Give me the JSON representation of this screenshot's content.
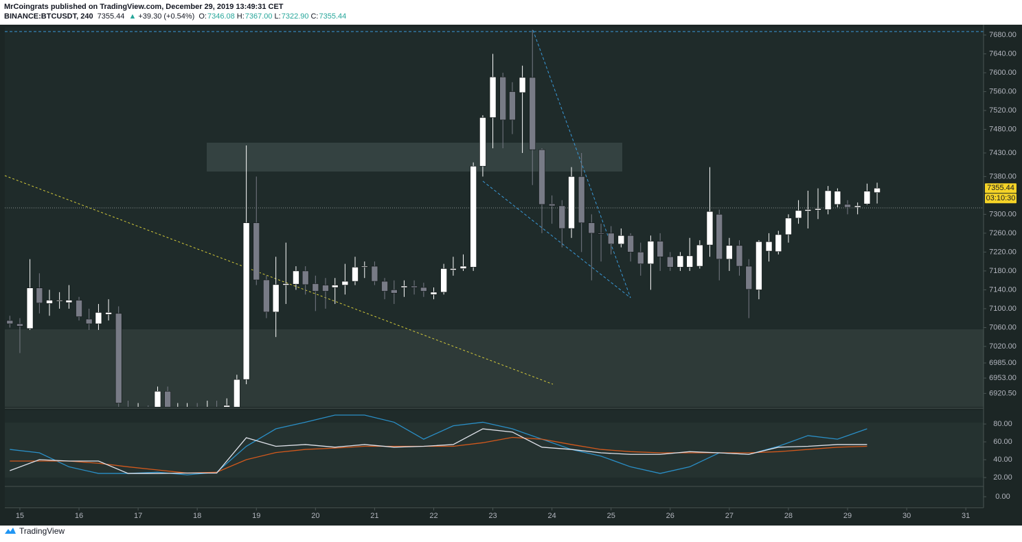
{
  "header": {
    "title": "MrCoingrats published on TradingView.com, December 29, 2019 13:49:31 CET",
    "symbol": "BINANCE:BTCUSDT, 240",
    "last": "7355.44",
    "arrow": "▲",
    "change": "+39.30 (+0.54%)",
    "ohlc": [
      {
        "label": "O:",
        "value": "7346.08"
      },
      {
        "label": "H:",
        "value": "7367.00"
      },
      {
        "label": "L:",
        "value": "7322.90"
      },
      {
        "label": "C:",
        "value": "7355.44"
      }
    ]
  },
  "footer": {
    "brand": "TradingView"
  },
  "chart_data": [
    {
      "type": "candlestick",
      "up_color": "#ffffff",
      "down_color": "#787b86",
      "price_label": "7355.44",
      "countdown": "03:10:30",
      "price_label_value": 7355.44,
      "x": [
        14.83,
        15,
        15.17,
        15.33,
        15.5,
        15.67,
        15.83,
        16,
        16.17,
        16.33,
        16.5,
        16.67,
        16.83,
        17,
        17.17,
        17.33,
        17.5,
        17.67,
        17.83,
        18,
        18.17,
        18.33,
        18.5,
        18.67,
        18.83,
        19,
        19.17,
        19.33,
        19.5,
        19.67,
        19.83,
        20,
        20.17,
        20.33,
        20.5,
        20.67,
        20.83,
        21,
        21.17,
        21.33,
        21.5,
        21.67,
        21.83,
        22,
        22.17,
        22.33,
        22.5,
        22.67,
        22.83,
        23,
        23.17,
        23.33,
        23.5,
        23.67,
        23.83,
        24,
        24.17,
        24.33,
        24.5,
        24.67,
        24.83,
        25,
        25.17,
        25.33,
        25.5,
        25.67,
        25.83,
        26,
        26.17,
        26.33,
        26.5,
        26.67,
        26.83,
        27,
        27.17,
        27.33,
        27.5,
        27.67,
        27.83,
        28,
        28.17,
        28.33,
        28.5,
        28.67,
        28.83,
        29,
        29.17,
        29.33,
        29.5
      ],
      "open": [
        7075,
        7068,
        7058,
        7144,
        7111,
        7116,
        7113,
        7118,
        7078,
        7068,
        7088,
        7090,
        6885,
        6870,
        6880,
        6870,
        6925,
        6870,
        6880,
        6885,
        6880,
        6890,
        6885,
        6880,
        6950,
        7282,
        7161,
        7093,
        7150,
        7152,
        7180,
        7153,
        7150,
        7145,
        7150,
        7158,
        7188,
        7190,
        7158,
        7140,
        7145,
        7148,
        7145,
        7130,
        7135,
        7182,
        7185,
        7188,
        7402,
        7505,
        7591,
        7560,
        7558,
        7590,
        7437,
        7322,
        7318,
        7270,
        7380,
        7282,
        7260,
        7260,
        7237,
        7255,
        7220,
        7195,
        7243,
        7210,
        7188,
        7188,
        7190,
        7235,
        7300,
        7205,
        7234,
        7190,
        7140,
        7222,
        7221,
        7257,
        7292,
        7307,
        7309,
        7310,
        7321,
        7321,
        7315,
        7322,
        7346.08
      ],
      "high": [
        7085,
        7080,
        7205,
        7175,
        7140,
        7135,
        7150,
        7125,
        7100,
        7110,
        7120,
        7105,
        6905,
        6900,
        6895,
        6935,
        6935,
        6900,
        6900,
        6900,
        6905,
        6905,
        6910,
        6960,
        7446,
        7380,
        7170,
        7210,
        7240,
        7190,
        7190,
        7170,
        7165,
        7165,
        7195,
        7210,
        7200,
        7200,
        7165,
        7160,
        7160,
        7160,
        7155,
        7145,
        7195,
        7210,
        7215,
        7410,
        7510,
        7640,
        7600,
        7580,
        7615,
        7691,
        7440,
        7340,
        7330,
        7400,
        7430,
        7300,
        7280,
        7275,
        7270,
        7260,
        7240,
        7255,
        7260,
        7220,
        7220,
        7250,
        7245,
        7400,
        7310,
        7250,
        7245,
        7205,
        7245,
        7260,
        7265,
        7300,
        7330,
        7350,
        7355,
        7360,
        7355,
        7330,
        7325,
        7365,
        7367
      ],
      "low": [
        7060,
        7006,
        7055,
        7090,
        7085,
        7100,
        7100,
        7075,
        7055,
        7055,
        7075,
        6890,
        6860,
        6850,
        6855,
        6860,
        6860,
        6850,
        6860,
        6860,
        6865,
        6865,
        6870,
        6870,
        6940,
        7150,
        7080,
        7040,
        7110,
        7140,
        7130,
        7095,
        7100,
        7110,
        7130,
        7150,
        7165,
        7150,
        7120,
        7110,
        7125,
        7130,
        7125,
        7120,
        7130,
        7170,
        7180,
        7180,
        7380,
        7440,
        7440,
        7470,
        7430,
        7362,
        7260,
        7280,
        7230,
        7250,
        7220,
        7160,
        7200,
        7215,
        7230,
        7200,
        7170,
        7140,
        7180,
        7180,
        7180,
        7180,
        7185,
        7210,
        7160,
        7180,
        7170,
        7080,
        7120,
        7200,
        7215,
        7240,
        7280,
        7270,
        7290,
        7300,
        7315,
        7300,
        7300,
        7320,
        7322.9
      ],
      "close": [
        7068,
        7063,
        7144,
        7112,
        7118,
        7118,
        7118,
        7083,
        7068,
        7092,
        7092,
        6900,
        6870,
        6880,
        6875,
        6925,
        6870,
        6880,
        6885,
        6880,
        6890,
        6885,
        6895,
        6950,
        7282,
        7161,
        7093,
        7151,
        7153,
        7180,
        7151,
        7137,
        7137,
        7150,
        7158,
        7188,
        7190,
        7158,
        7137,
        7133,
        7148,
        7145,
        7137,
        7135,
        7185,
        7185,
        7190,
        7402,
        7505,
        7591,
        7500,
        7500,
        7590,
        7437,
        7321,
        7318,
        7270,
        7380,
        7282,
        7260,
        7258,
        7237,
        7255,
        7220,
        7195,
        7243,
        7210,
        7188,
        7212,
        7212,
        7235,
        7306,
        7205,
        7234,
        7190,
        7141,
        7242,
        7242,
        7257,
        7292,
        7308,
        7310,
        7312,
        7350,
        7349,
        7315,
        7318,
        7349,
        7355.44
      ],
      "xlim": [
        14.745,
        31.3
      ],
      "xticks": [
        15,
        16,
        17,
        18,
        19,
        20,
        21,
        22,
        23,
        24,
        25,
        26,
        27,
        28,
        29,
        30,
        31
      ],
      "ylim": [
        6892,
        7696
      ],
      "yticks": [
        {
          "value": 7680,
          "label": "7680.00"
        },
        {
          "value": 7640,
          "label": "7640.00"
        },
        {
          "value": 7600,
          "label": "7600.00"
        },
        {
          "value": 7560,
          "label": "7560.00"
        },
        {
          "value": 7520,
          "label": "7520.00"
        },
        {
          "value": 7480,
          "label": "7480.00"
        },
        {
          "value": 7430,
          "label": "7430.00"
        },
        {
          "value": 7380,
          "label": "7380.00"
        },
        {
          "value": 7300,
          "label": "7300.00"
        },
        {
          "value": 7260,
          "label": "7260.00"
        },
        {
          "value": 7220,
          "label": "7220.00"
        },
        {
          "value": 7180,
          "label": "7180.00"
        },
        {
          "value": 7140,
          "label": "7140.00"
        },
        {
          "value": 7100,
          "label": "7100.00"
        },
        {
          "value": 7060,
          "label": "7060.00"
        },
        {
          "value": 7020,
          "label": "7020.00"
        },
        {
          "value": 6985,
          "label": "6985.00"
        },
        {
          "value": 6953,
          "label": "6953.00"
        },
        {
          "value": 6920.5,
          "label": "6920.50"
        }
      ]
    },
    {
      "type": "line",
      "x": [
        14.83,
        15.33,
        15.83,
        16.33,
        16.83,
        17.33,
        17.83,
        18.33,
        18.83,
        19.33,
        19.83,
        20.33,
        20.83,
        21.33,
        21.83,
        22.33,
        22.83,
        23.33,
        23.83,
        24.33,
        24.83,
        25.33,
        25.83,
        26.33,
        26.83,
        27.33,
        27.83,
        28.33,
        28.83,
        29.33
      ],
      "series": [
        {
          "color": "#2a8fc7",
          "values": [
            51.5,
            47.7,
            32,
            24.6,
            24.6,
            26,
            23,
            26,
            55,
            74.6,
            82,
            90,
            90,
            82,
            63,
            78,
            82,
            74.6,
            63,
            51.5,
            44,
            32,
            24.6,
            32,
            47.7,
            46,
            55,
            67,
            63,
            74.6
          ]
        },
        {
          "color": "#d4591c",
          "values": [
            38.5,
            38.5,
            38.5,
            36,
            32,
            28.5,
            25,
            26,
            40,
            48,
            51.5,
            53,
            55,
            55,
            55,
            55,
            59,
            65,
            63,
            57,
            51.5,
            49,
            47.7,
            47.7,
            47.7,
            47.7,
            49,
            51.5,
            54,
            55
          ]
        },
        {
          "color": "#e0e3eb",
          "values": [
            27.7,
            40,
            38.5,
            38.5,
            24.6,
            24.6,
            25,
            25,
            64.6,
            55,
            57,
            54,
            57,
            54,
            55,
            57,
            74.6,
            71,
            54,
            51.5,
            47.7,
            46,
            46,
            49,
            47.7,
            46,
            54,
            55,
            57,
            57
          ]
        }
      ],
      "ylim": [
        10.8,
        95.4
      ],
      "yticks": [
        {
          "value": 80,
          "label": "80.00"
        },
        {
          "value": 60,
          "label": "60.00"
        },
        {
          "value": 40,
          "label": "40.00"
        },
        {
          "value": 20,
          "label": "20.00"
        }
      ]
    },
    {
      "type": "line",
      "series": [],
      "ylim": [
        -1,
        1
      ],
      "yticks": [
        {
          "value": 0,
          "label": "0.00"
        }
      ]
    }
  ]
}
